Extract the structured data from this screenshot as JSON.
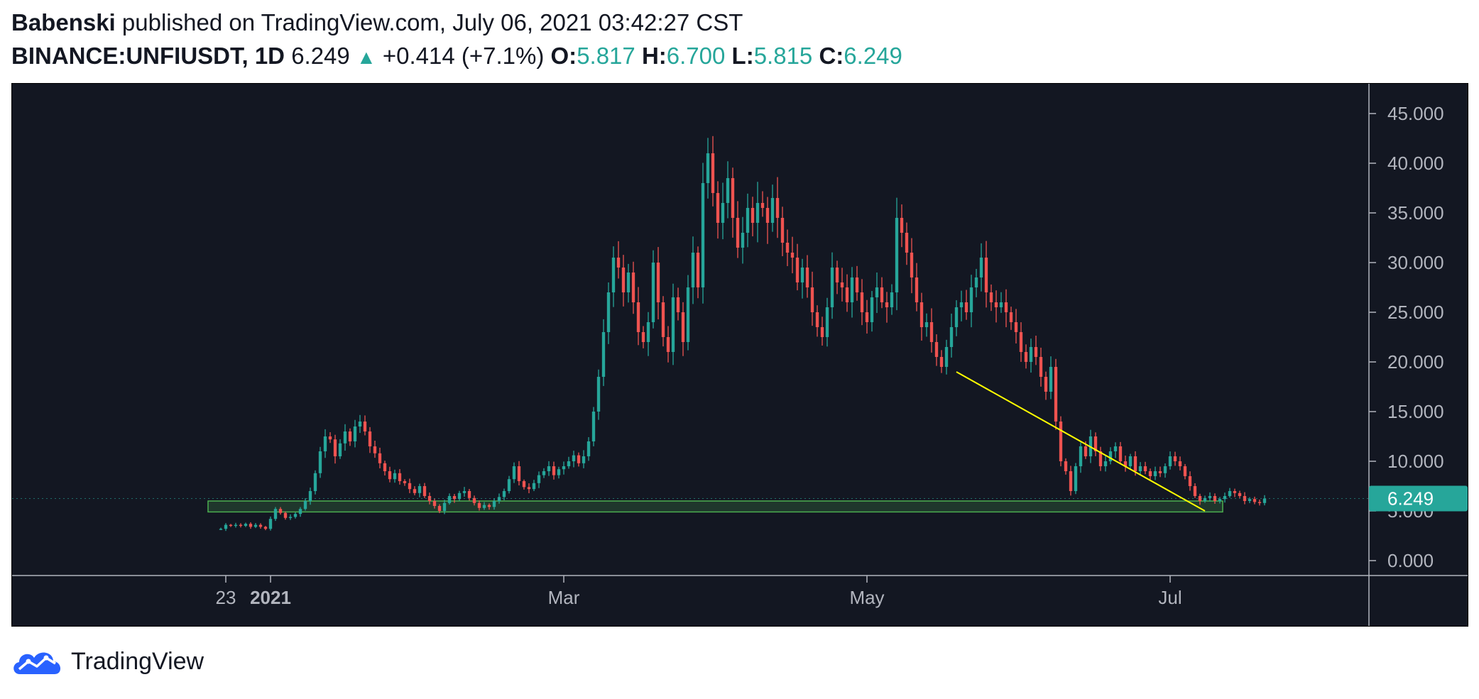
{
  "header": {
    "author": "Babenski",
    "published_text": "published on TradingView.com, July 06, 2021 03:42:27 CST",
    "symbol": "BINANCE:UNFIUSDT, 1D",
    "last_price": "6.249",
    "change": "+0.414 (+7.1%)",
    "open_label": "O:",
    "open": "5.817",
    "high_label": "H:",
    "high": "6.700",
    "low_label": "L:",
    "low": "5.815",
    "close_label": "C:",
    "close": "6.249"
  },
  "footer": {
    "brand": "TradingView",
    "logo_icon": "tradingview-cloud-icon"
  },
  "colors": {
    "background": "#131722",
    "up": "#26a69a",
    "down": "#ef5350",
    "axis_text": "#b2b5be",
    "trendline": "#ffff00",
    "support_zone": "#4caf50"
  },
  "chart_data": {
    "type": "candlestick",
    "interval": "1D",
    "currency": "USDT",
    "y_range": [
      -1.5,
      48
    ],
    "y_ticks": [
      "45.000",
      "40.000",
      "35.000",
      "30.000",
      "25.000",
      "20.000",
      "15.000",
      "10.000",
      "5.000",
      "0.000"
    ],
    "y_tick_values": [
      45,
      40,
      35,
      30,
      25,
      20,
      15,
      10,
      5,
      0
    ],
    "x_range": [
      "2020-11-10",
      "2021-08-10"
    ],
    "x_ticks": [
      {
        "date": "2020-12-23",
        "label": "23",
        "bold": false
      },
      {
        "date": "2021-01-01",
        "label": "2021",
        "bold": true
      },
      {
        "date": "2021-03-01",
        "label": "Mar",
        "bold": false
      },
      {
        "date": "2021-05-01",
        "label": "May",
        "bold": false
      },
      {
        "date": "2021-07-01",
        "label": "Jul",
        "bold": false
      }
    ],
    "start_date": "2020-12-22",
    "closes": [
      3.2,
      3.6,
      3.5,
      3.6,
      3.5,
      3.7,
      3.4,
      3.6,
      3.4,
      3.2,
      4.2,
      5.2,
      4.8,
      4.3,
      4.4,
      4.7,
      5.2,
      6.0,
      7.0,
      8.8,
      11.0,
      12.5,
      12.2,
      10.5,
      11.8,
      13.0,
      12.0,
      13.5,
      14.0,
      13.0,
      11.5,
      10.8,
      9.8,
      9.0,
      8.2,
      8.8,
      8.0,
      7.8,
      7.2,
      6.8,
      7.5,
      6.5,
      6.0,
      5.5,
      5.0,
      5.8,
      6.5,
      6.2,
      6.8,
      7.0,
      6.3,
      5.8,
      5.3,
      5.6,
      5.4,
      6.0,
      6.4,
      7.0,
      8.2,
      9.5,
      8.0,
      7.4,
      7.2,
      7.8,
      8.6,
      9.0,
      9.5,
      8.6,
      9.2,
      9.5,
      10.0,
      10.6,
      9.8,
      10.5,
      12.0,
      15.0,
      18.5,
      23.0,
      27.0,
      30.5,
      29.5,
      27.0,
      29.0,
      26.0,
      23.0,
      22.0,
      24.0,
      30.0,
      26.0,
      22.5,
      21.0,
      26.5,
      25.0,
      22.0,
      27.5,
      31.0,
      27.5,
      38.0,
      41.0,
      37.0,
      34.0,
      36.0,
      38.5,
      34.5,
      31.5,
      33.0,
      35.5,
      34.0,
      36.0,
      35.5,
      34.0,
      36.5,
      34.5,
      32.0,
      31.0,
      30.5,
      28.0,
      29.5,
      27.5,
      25.0,
      23.5,
      22.5,
      25.5,
      29.5,
      28.0,
      27.5,
      26.0,
      28.5,
      27.0,
      25.0,
      24.0,
      26.5,
      27.5,
      26.0,
      25.5,
      27.0,
      34.5,
      33.0,
      31.0,
      28.5,
      26.0,
      23.5,
      24.0,
      22.0,
      20.5,
      19.5,
      21.5,
      23.5,
      25.5,
      26.0,
      25.0,
      27.5,
      28.5,
      30.5,
      27.0,
      26.0,
      25.5,
      26.0,
      25.0,
      24.0,
      23.0,
      21.0,
      20.0,
      21.5,
      20.5,
      18.5,
      17.0,
      19.5,
      14.0,
      10.0,
      9.0,
      7.0,
      9.5,
      11.5,
      10.5,
      12.5,
      11.0,
      9.5,
      10.0,
      11.0,
      11.5,
      10.0,
      9.5,
      10.5,
      9.0,
      9.5,
      9.0,
      8.5,
      9.0,
      8.8,
      9.5,
      10.5,
      10.0,
      9.5,
      8.5,
      7.5,
      6.5,
      6.0,
      6.3,
      6.5,
      6.0,
      6.2,
      6.5,
      7.0,
      6.8,
      6.5,
      6.0,
      6.2,
      5.9,
      5.8,
      6.249
    ],
    "last_price_label": "6.249",
    "trendline": {
      "from": {
        "date": "2021-05-19",
        "price": 19.0
      },
      "to": {
        "date": "2021-07-08",
        "price": 5.0
      }
    },
    "support_zone": {
      "from_date": "2020-12-22",
      "to_date": "2021-07-09",
      "low": 4.9,
      "high": 6.0
    }
  }
}
